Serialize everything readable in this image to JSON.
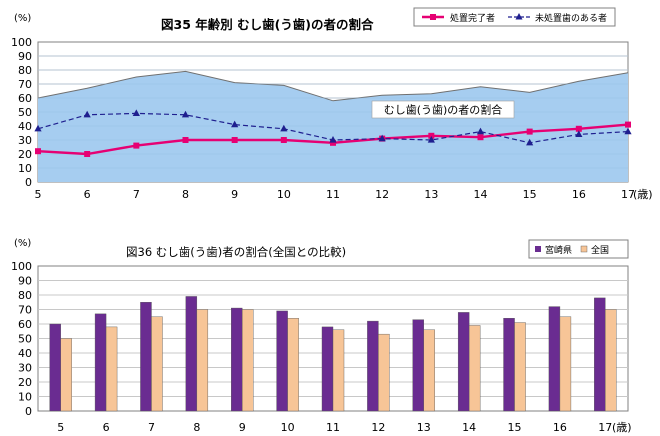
{
  "chart_data": [
    {
      "type": "area+line",
      "title": "図35 年齢別 むし歯(う歯)の者の割合",
      "ylabel": "(%)",
      "xunit": "(歳)",
      "ylim": [
        0,
        100
      ],
      "yticks": [
        0,
        10,
        20,
        30,
        40,
        50,
        60,
        70,
        80,
        90,
        100
      ],
      "categories": [
        "5",
        "6",
        "7",
        "8",
        "9",
        "10",
        "11",
        "12",
        "13",
        "14",
        "15",
        "16",
        "17"
      ],
      "grid": true,
      "legend_position": "top-right",
      "area": {
        "name": "むし歯(う歯)の者の割合",
        "values": [
          60,
          67,
          75,
          79,
          71,
          69,
          58,
          62,
          63,
          68,
          64,
          72,
          78
        ],
        "color": "#a6cdf0"
      },
      "series": [
        {
          "name": "処置完了者",
          "values": [
            22,
            20,
            26,
            30,
            30,
            30,
            28,
            31,
            33,
            32,
            36,
            38,
            41
          ],
          "color": "#e60073"
        },
        {
          "name": "未処置歯のある者",
          "values": [
            38,
            48,
            49,
            48,
            41,
            38,
            30,
            31,
            30,
            36,
            28,
            34,
            36
          ],
          "color": "#1f1f8f"
        }
      ]
    },
    {
      "type": "bar",
      "title": "図36 むし歯(う歯)者の割合(全国との比較)",
      "ylabel": "(%)",
      "xunit": "(歳)",
      "ylim": [
        0,
        100
      ],
      "yticks": [
        0,
        10,
        20,
        30,
        40,
        50,
        60,
        70,
        80,
        90,
        100
      ],
      "categories": [
        "5",
        "6",
        "7",
        "8",
        "9",
        "10",
        "11",
        "12",
        "13",
        "14",
        "15",
        "16",
        "17"
      ],
      "grid": true,
      "legend_position": "top-right",
      "series": [
        {
          "name": "宮崎県",
          "values": [
            60,
            67,
            75,
            79,
            71,
            69,
            58,
            62,
            63,
            68,
            64,
            72,
            78
          ],
          "color": "#6a2c91"
        },
        {
          "name": "全国",
          "values": [
            50,
            58,
            65,
            70,
            70,
            64,
            56,
            53,
            56,
            59,
            61,
            65,
            70
          ],
          "color": "#f7c597"
        }
      ]
    }
  ]
}
